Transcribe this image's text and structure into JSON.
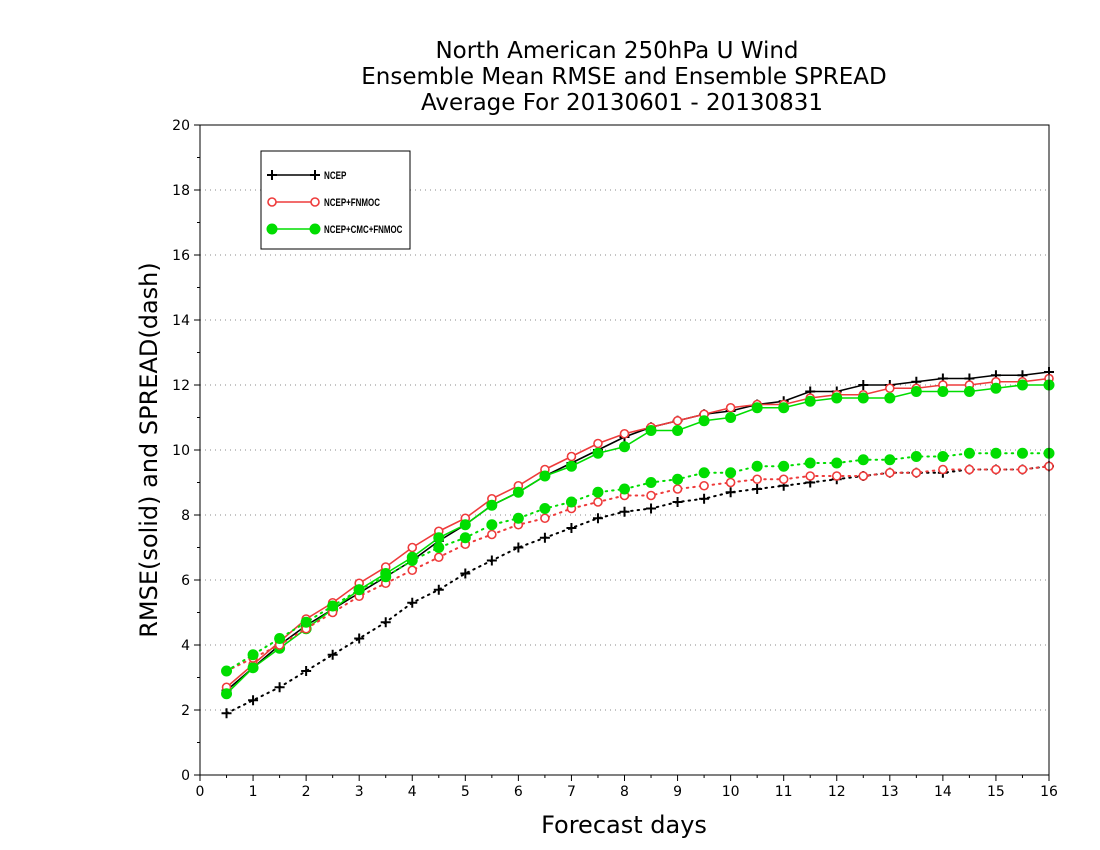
{
  "chart_data": {
    "type": "line",
    "title": [
      "North American 250hPa U Wind",
      "Ensemble Mean RMSE and Ensemble SPREAD",
      "Average For 20130601 - 20130831"
    ],
    "xlabel": "Forecast days",
    "ylabel": "RMSE(solid) and SPREAD(dash)",
    "xlim": [
      0,
      16
    ],
    "ylim": [
      0,
      20
    ],
    "xticks": [
      0,
      1,
      2,
      3,
      4,
      5,
      6,
      7,
      8,
      9,
      10,
      11,
      12,
      13,
      14,
      15,
      16
    ],
    "yticks": [
      0,
      2,
      4,
      6,
      8,
      10,
      12,
      14,
      16,
      18,
      20
    ],
    "grid": "horizontal dotted",
    "legend_position": "top-left",
    "x": [
      0.5,
      1,
      1.5,
      2,
      2.5,
      3,
      3.5,
      4,
      4.5,
      5,
      5.5,
      6,
      6.5,
      7,
      7.5,
      8,
      8.5,
      9,
      9.5,
      10,
      10.5,
      11,
      11.5,
      12,
      12.5,
      13,
      13.5,
      14,
      14.5,
      15,
      15.5,
      16
    ],
    "series": [
      {
        "name": "NCEP",
        "metric": "RMSE",
        "style": "solid",
        "marker": "plus",
        "color": "#000000",
        "values": [
          2.6,
          3.3,
          4.0,
          4.6,
          5.1,
          5.6,
          6.1,
          6.6,
          7.2,
          7.7,
          8.3,
          8.7,
          9.2,
          9.6,
          10.0,
          10.4,
          10.7,
          10.9,
          11.1,
          11.2,
          11.4,
          11.5,
          11.8,
          11.8,
          12.0,
          12.0,
          12.1,
          12.2,
          12.2,
          12.3,
          12.3,
          12.4
        ]
      },
      {
        "name": "NCEP+FNMOC",
        "metric": "RMSE",
        "style": "solid",
        "marker": "open-circle",
        "color": "#ee3b3b",
        "values": [
          2.7,
          3.4,
          4.1,
          4.8,
          5.3,
          5.9,
          6.4,
          7.0,
          7.5,
          7.9,
          8.5,
          8.9,
          9.4,
          9.8,
          10.2,
          10.5,
          10.7,
          10.9,
          11.1,
          11.3,
          11.4,
          11.4,
          11.6,
          11.7,
          11.7,
          11.9,
          11.9,
          12.0,
          12.0,
          12.1,
          12.1,
          12.2
        ]
      },
      {
        "name": "NCEP+CMC+FNMOC",
        "metric": "RMSE",
        "style": "solid",
        "marker": "filled-circle",
        "color": "#00dd00",
        "values": [
          2.5,
          3.3,
          3.9,
          4.5,
          5.1,
          5.7,
          6.2,
          6.7,
          7.3,
          7.7,
          8.3,
          8.7,
          9.2,
          9.5,
          9.9,
          10.1,
          10.6,
          10.6,
          10.9,
          11.0,
          11.3,
          11.3,
          11.5,
          11.6,
          11.6,
          11.6,
          11.8,
          11.8,
          11.8,
          11.9,
          12.0,
          12.0
        ]
      },
      {
        "name": "NCEP",
        "metric": "SPREAD",
        "style": "dotted",
        "marker": "plus",
        "color": "#000000",
        "values": [
          1.9,
          2.3,
          2.7,
          3.2,
          3.7,
          4.2,
          4.7,
          5.3,
          5.7,
          6.2,
          6.6,
          7.0,
          7.3,
          7.6,
          7.9,
          8.1,
          8.2,
          8.4,
          8.5,
          8.7,
          8.8,
          8.9,
          9.0,
          9.1,
          9.2,
          9.3,
          9.3,
          9.3,
          9.4,
          9.4,
          9.4,
          9.5
        ]
      },
      {
        "name": "NCEP+FNMOC",
        "metric": "SPREAD",
        "style": "dotted",
        "marker": "open-circle",
        "color": "#ee3b3b",
        "values": [
          3.2,
          3.6,
          4.0,
          4.5,
          5.0,
          5.5,
          5.9,
          6.3,
          6.7,
          7.1,
          7.4,
          7.7,
          7.9,
          8.2,
          8.4,
          8.6,
          8.6,
          8.8,
          8.9,
          9.0,
          9.1,
          9.1,
          9.2,
          9.2,
          9.2,
          9.3,
          9.3,
          9.4,
          9.4,
          9.4,
          9.4,
          9.5
        ]
      },
      {
        "name": "NCEP+CMC+FNMOC",
        "metric": "SPREAD",
        "style": "dotted",
        "marker": "filled-circle",
        "color": "#00dd00",
        "values": [
          3.2,
          3.7,
          4.2,
          4.7,
          5.2,
          5.7,
          6.1,
          6.6,
          7.0,
          7.3,
          7.7,
          7.9,
          8.2,
          8.4,
          8.7,
          8.8,
          9.0,
          9.1,
          9.3,
          9.3,
          9.5,
          9.5,
          9.6,
          9.6,
          9.7,
          9.7,
          9.8,
          9.8,
          9.9,
          9.9,
          9.9,
          9.9
        ]
      }
    ]
  }
}
